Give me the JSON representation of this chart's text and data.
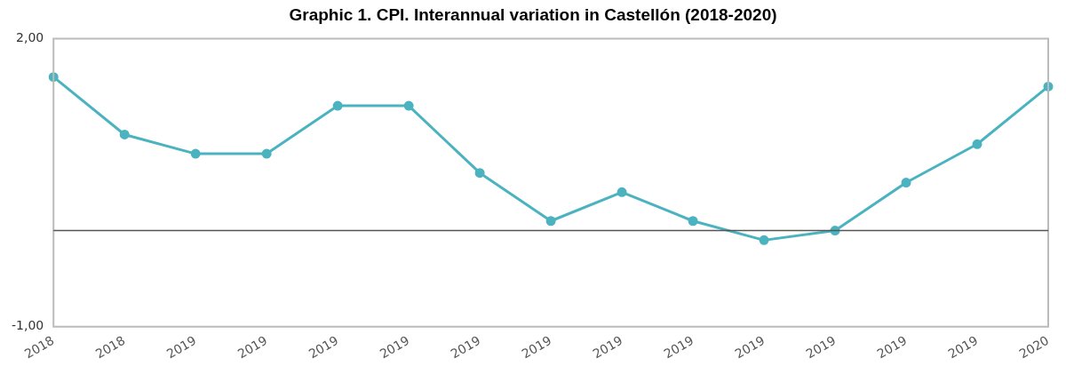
{
  "chart_data": {
    "type": "line",
    "title": "Graphic 1. CPI. Interannual variation in Castellón (2018-2020)",
    "categories": [
      "2018",
      "2018",
      "2019",
      "2019",
      "2019",
      "2019",
      "2019",
      "2019",
      "2019",
      "2019",
      "2019",
      "2019",
      "2019",
      "2019",
      "2020"
    ],
    "series": [
      {
        "color": "#4bb3c0",
        "values": [
          1.6,
          1.0,
          0.8,
          0.8,
          1.3,
          1.3,
          0.6,
          0.1,
          0.4,
          0.1,
          -0.1,
          0.0,
          0.5,
          0.9,
          1.5
        ]
      }
    ],
    "ylim": [
      -1,
      2
    ],
    "yticks": [
      {
        "value": 2,
        "label": "2,00"
      },
      {
        "value": -1,
        "label": "-1,00"
      }
    ],
    "ref_lines": [
      {
        "axis": "y",
        "value": 0,
        "color": "#555555"
      }
    ],
    "grid": false,
    "legend": false,
    "marker": "circle",
    "line_style": "solid"
  }
}
